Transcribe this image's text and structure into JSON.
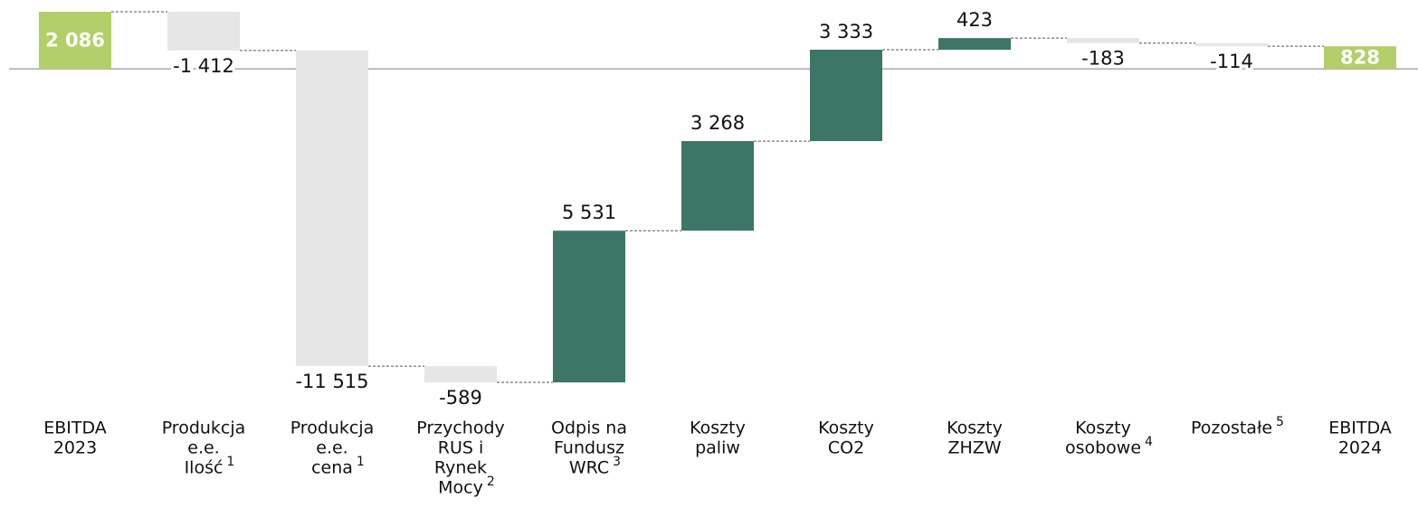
{
  "chart_data": {
    "type": "waterfall",
    "categories": [
      [
        "EBITDA",
        "2023"
      ],
      [
        "Produkcja",
        "e.e.",
        "Ilość"
      ],
      [
        "Produkcja",
        "e.e.",
        "cena"
      ],
      [
        "Przychody",
        "RUS i",
        "Rynek",
        "Mocy"
      ],
      [
        "Odpis na",
        "Fundusz",
        "WRC"
      ],
      [
        "Koszty",
        "paliw"
      ],
      [
        "Koszty",
        "CO2"
      ],
      [
        "Koszty",
        "ZHZW"
      ],
      [
        "Koszty",
        "osobowe"
      ],
      [
        "Pozostałe"
      ],
      [
        "EBITDA",
        "2024"
      ]
    ],
    "footnotes": [
      null,
      "1",
      "1",
      "2",
      "3",
      null,
      null,
      null,
      "4",
      "5",
      null
    ],
    "values": [
      2086,
      -1412,
      -11515,
      -589,
      5531,
      3268,
      3333,
      423,
      -183,
      -114,
      828
    ],
    "value_labels": [
      "2 086",
      "-1 412",
      "-11 515",
      "-589",
      "5 531",
      "3 268",
      "3 333",
      "423",
      "-183",
      "-114",
      "828"
    ],
    "totals": [
      true,
      false,
      false,
      false,
      false,
      false,
      false,
      false,
      false,
      false,
      true
    ],
    "colors": {
      "total": "#b3cf6a",
      "increase": "#3d7566",
      "decrease": "#e6e6e6"
    }
  }
}
